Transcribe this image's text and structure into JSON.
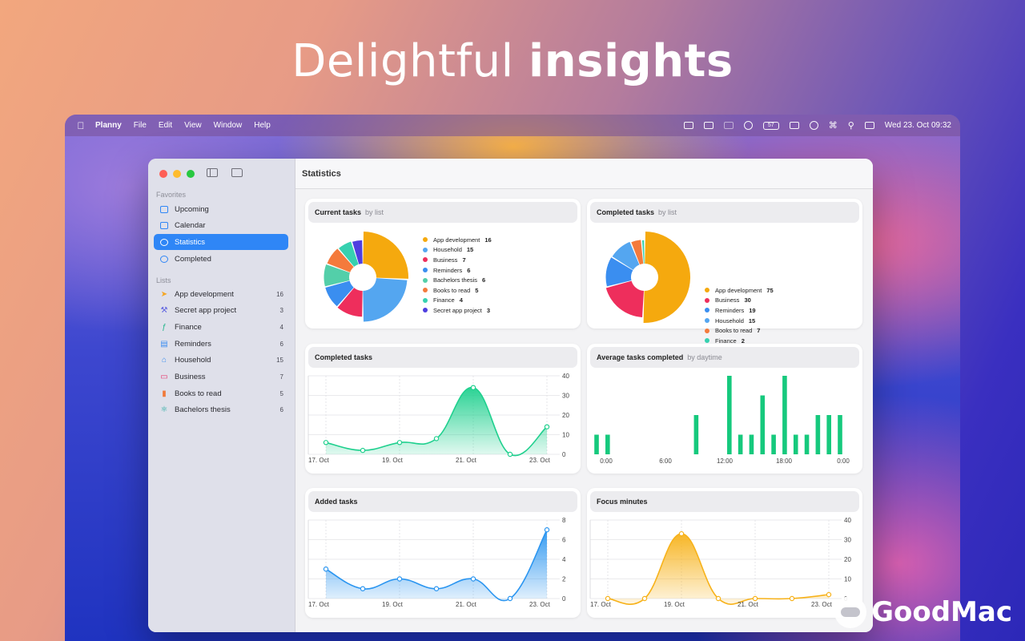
{
  "headline": {
    "light": "Delightful",
    "bold": "insights"
  },
  "menubar": {
    "app": "Planny",
    "menus": [
      "File",
      "Edit",
      "View",
      "Window",
      "Help"
    ],
    "clock": "Wed 23. Oct  09:32",
    "battery": "57"
  },
  "sidebar": {
    "favorites_label": "Favorites",
    "favorites": [
      {
        "label": "Upcoming",
        "icon": "tray-icon",
        "color": "#2f86f6"
      },
      {
        "label": "Calendar",
        "icon": "calendar-icon",
        "color": "#2f86f6"
      },
      {
        "label": "Statistics",
        "icon": "clock-icon",
        "color": "#ffffff",
        "active": true
      },
      {
        "label": "Completed",
        "icon": "checkmark-circle-icon",
        "color": "#2f86f6"
      }
    ],
    "lists_label": "Lists",
    "lists": [
      {
        "label": "App development",
        "count": "16",
        "icon": "swift-icon",
        "glyph": "➤",
        "color": "#f5a623"
      },
      {
        "label": "Secret app project",
        "count": "3",
        "icon": "hammer-icon",
        "glyph": "⚒",
        "color": "#5b5fe0"
      },
      {
        "label": "Finance",
        "count": "4",
        "icon": "function-icon",
        "glyph": "ƒ",
        "color": "#22b58a"
      },
      {
        "label": "Reminders",
        "count": "6",
        "icon": "book-icon",
        "glyph": "▤",
        "color": "#3b8df0"
      },
      {
        "label": "Household",
        "count": "15",
        "icon": "house-icon",
        "glyph": "⌂",
        "color": "#3b8df0"
      },
      {
        "label": "Business",
        "count": "7",
        "icon": "briefcase-icon",
        "glyph": "▭",
        "color": "#e8336b"
      },
      {
        "label": "Books to read",
        "count": "5",
        "icon": "book-closed-icon",
        "glyph": "▮",
        "color": "#f07a3a"
      },
      {
        "label": "Bachelors thesis",
        "count": "6",
        "icon": "atom-icon",
        "glyph": "⚛",
        "color": "#22a8a0"
      }
    ]
  },
  "main": {
    "title": "Statistics"
  },
  "cards": {
    "current": {
      "title": "Current tasks",
      "sub": "by list"
    },
    "completed_pie": {
      "title": "Completed tasks",
      "sub": "by list"
    },
    "completed_line": {
      "title": "Completed tasks"
    },
    "average": {
      "title": "Average tasks completed",
      "sub": "by daytime"
    },
    "added": {
      "title": "Added tasks"
    },
    "focus": {
      "title": "Focus minutes"
    }
  },
  "chart_data": [
    {
      "id": "current",
      "type": "pie",
      "labels": [
        "App development",
        "Household",
        "Business",
        "Reminders",
        "Bachelors thesis",
        "Books to read",
        "Finance",
        "Secret app project"
      ],
      "values": [
        16,
        15,
        7,
        6,
        6,
        5,
        4,
        3
      ],
      "display_values": [
        "16",
        "15",
        "7",
        "6",
        "6",
        "5",
        "4",
        "3"
      ],
      "colors": [
        "#f5a90e",
        "#54a6f0",
        "#ee2e5c",
        "#3a8ef0",
        "#53cfa9",
        "#f47a3c",
        "#36d1b0",
        "#4f3fe0"
      ]
    },
    {
      "id": "completed_pie",
      "type": "pie",
      "labels": [
        "App development",
        "Business",
        "Reminders",
        "Household",
        "Books to read",
        "Finance"
      ],
      "values": [
        75,
        30,
        19,
        15,
        7,
        2
      ],
      "display_values": [
        "75",
        "30",
        "19",
        "15",
        "7",
        "2"
      ],
      "colors": [
        "#f5a90e",
        "#ee2e5c",
        "#3a8ef0",
        "#54a6f0",
        "#f47a3c",
        "#36d1b0"
      ]
    },
    {
      "id": "completed_line",
      "type": "area",
      "x": [
        "17. Oct",
        "18. Oct",
        "19. Oct",
        "20. Oct",
        "21. Oct",
        "22. Oct",
        "23. Oct"
      ],
      "xticks": [
        "17. Oct",
        "19. Oct",
        "21. Oct",
        "23. Oct"
      ],
      "y": [
        6,
        2,
        6,
        8,
        34,
        0,
        14
      ],
      "ylim": [
        0,
        40
      ],
      "yticks": [
        "40",
        "30",
        "20",
        "10",
        "0"
      ],
      "color": "#1fd08e"
    },
    {
      "id": "average",
      "type": "bar",
      "values": [
        10,
        10,
        0,
        0,
        0,
        0,
        0,
        0,
        0,
        20,
        0,
        0,
        40,
        10,
        10,
        30,
        10,
        40,
        10,
        10,
        20,
        20,
        20
      ],
      "xticks": [
        "0:00",
        "6:00",
        "12:00",
        "18:00",
        "0:00"
      ],
      "ylim": [
        0,
        40
      ],
      "color": "#16c97d"
    },
    {
      "id": "added",
      "type": "area",
      "x": [
        "17. Oct",
        "18. Oct",
        "19. Oct",
        "20. Oct",
        "21. Oct",
        "22. Oct",
        "23. Oct"
      ],
      "xticks": [
        "17. Oct",
        "19. Oct",
        "21. Oct",
        "23. Oct"
      ],
      "y": [
        3,
        1,
        2,
        1,
        2,
        0,
        7
      ],
      "ylim": [
        0,
        8
      ],
      "yticks": [
        "8",
        "6",
        "4",
        "2",
        "0"
      ],
      "color": "#2a95f0"
    },
    {
      "id": "focus",
      "type": "area",
      "x": [
        "17. Oct",
        "18. Oct",
        "19. Oct",
        "20. Oct",
        "21. Oct",
        "22. Oct",
        "23. Oct"
      ],
      "xticks": [
        "17. Oct",
        "19. Oct",
        "21. Oct",
        "23. Oct"
      ],
      "y": [
        0,
        0,
        33,
        0,
        0,
        0,
        2
      ],
      "ylim": [
        0,
        40
      ],
      "yticks": [
        "40",
        "30",
        "20",
        "10",
        "0"
      ],
      "color": "#f7b21a"
    }
  ],
  "watermark": "GoodMac"
}
